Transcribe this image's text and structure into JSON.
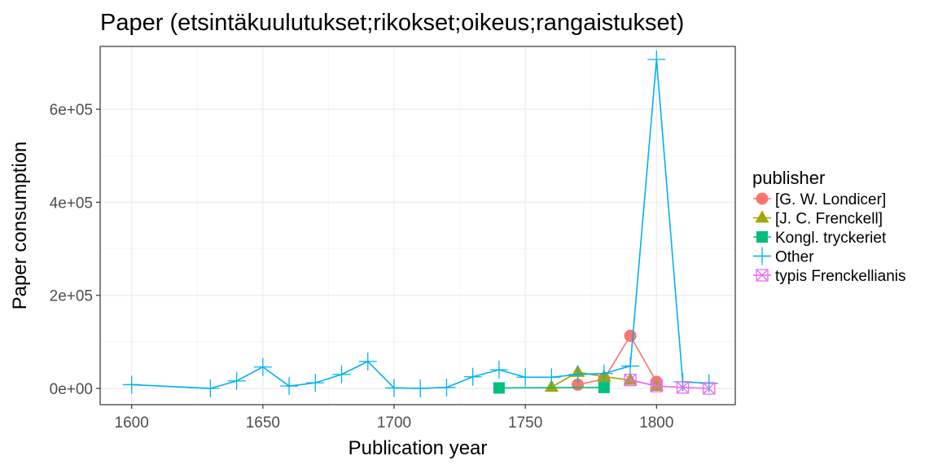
{
  "chart_data": {
    "type": "line",
    "title": "Paper (etsintäkuulutukset;rikokset;oikeus;rangaistukset)",
    "xlabel": "Publication year",
    "ylabel": "Paper consumption",
    "xlim": [
      1588,
      1830
    ],
    "ylim": [
      -35000,
      735000
    ],
    "x_ticks": [
      1600,
      1650,
      1700,
      1750,
      1800
    ],
    "x_tick_labels": [
      "1600",
      "1650",
      "1700",
      "1750",
      "1800"
    ],
    "y_ticks": [
      0,
      200000,
      400000,
      600000
    ],
    "y_tick_labels": [
      "0e+00",
      "2e+05",
      "4e+05",
      "6e+05"
    ],
    "grid": true,
    "legend": {
      "title": "publisher",
      "position": "right"
    },
    "series": [
      {
        "name": "[G. W. Londicer]",
        "color": "#F8766D",
        "marker": "circle",
        "points": [
          [
            1770,
            8000
          ],
          [
            1780,
            20000
          ],
          [
            1790,
            113000
          ],
          [
            1800,
            14000
          ]
        ]
      },
      {
        "name": "[J. C. Frenckell]",
        "color": "#A3A500",
        "marker": "triangle",
        "points": [
          [
            1760,
            3000
          ],
          [
            1770,
            35000
          ],
          [
            1780,
            25000
          ],
          [
            1790,
            18000
          ],
          [
            1800,
            5000
          ]
        ]
      },
      {
        "name": "Kongl. tryckeriet",
        "color": "#00BF7D",
        "marker": "square",
        "points": [
          [
            1740,
            1000
          ],
          [
            1780,
            2000
          ]
        ]
      },
      {
        "name": "Other",
        "color": "#00B0F6",
        "marker": "plus",
        "points": [
          [
            1600,
            8000
          ],
          [
            1630,
            0
          ],
          [
            1640,
            16000
          ],
          [
            1650,
            46000
          ],
          [
            1660,
            5000
          ],
          [
            1670,
            12000
          ],
          [
            1680,
            30000
          ],
          [
            1690,
            58000
          ],
          [
            1700,
            1000
          ],
          [
            1710,
            0
          ],
          [
            1720,
            2000
          ],
          [
            1730,
            25000
          ],
          [
            1740,
            40000
          ],
          [
            1750,
            24000
          ],
          [
            1760,
            24000
          ],
          [
            1770,
            30000
          ],
          [
            1780,
            32000
          ],
          [
            1790,
            48000
          ],
          [
            1800,
            707000
          ],
          [
            1810,
            14000
          ],
          [
            1820,
            11000
          ]
        ]
      },
      {
        "name": "typis Frenckellianis",
        "color": "#E76BF3",
        "marker": "boxx",
        "points": [
          [
            1790,
            18000
          ],
          [
            1800,
            5000
          ],
          [
            1810,
            2000
          ],
          [
            1820,
            0
          ]
        ]
      }
    ]
  }
}
